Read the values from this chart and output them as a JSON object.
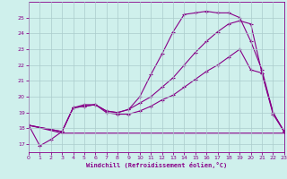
{
  "xlabel": "Windchill (Refroidissement éolien,°C)",
  "bg_color": "#cff0ec",
  "grid_color": "#aacccc",
  "line_color": "#880088",
  "line1_x": [
    0,
    1,
    2,
    3,
    4,
    5,
    6,
    7,
    8,
    9,
    10,
    11,
    12,
    13,
    14,
    15,
    16,
    17,
    18,
    19,
    20,
    21,
    22,
    23
  ],
  "line1_y": [
    18.2,
    16.9,
    17.3,
    17.8,
    19.3,
    19.4,
    19.5,
    19.1,
    19.0,
    19.2,
    20.0,
    21.4,
    22.7,
    24.1,
    25.2,
    25.3,
    25.4,
    25.3,
    25.3,
    25.0,
    23.5,
    21.7,
    19.0,
    17.8
  ],
  "line2_x": [
    0,
    3,
    4,
    5,
    6,
    7,
    8,
    9,
    10,
    11,
    12,
    13,
    14,
    15,
    16,
    17,
    18,
    19,
    20,
    21,
    22,
    23
  ],
  "line2_y": [
    18.2,
    17.8,
    19.3,
    19.5,
    19.5,
    19.1,
    19.0,
    19.2,
    19.6,
    20.0,
    20.6,
    21.2,
    22.0,
    22.8,
    23.5,
    24.1,
    24.6,
    24.8,
    24.6,
    21.5,
    19.0,
    17.8
  ],
  "line3_x": [
    0,
    3,
    4,
    5,
    6,
    7,
    8,
    9,
    10,
    11,
    12,
    13,
    14,
    15,
    16,
    17,
    18,
    19,
    20,
    21,
    22,
    23
  ],
  "line3_y": [
    18.2,
    17.8,
    19.3,
    19.4,
    19.5,
    19.0,
    18.9,
    18.9,
    19.1,
    19.4,
    19.8,
    20.1,
    20.6,
    21.1,
    21.6,
    22.0,
    22.5,
    23.0,
    21.7,
    21.5,
    18.9,
    17.8
  ],
  "line4_x": [
    0,
    3,
    23
  ],
  "line4_y": [
    18.2,
    17.7,
    17.7
  ],
  "xlim": [
    0,
    23
  ],
  "ylim": [
    16.5,
    26
  ],
  "yticks": [
    17,
    18,
    19,
    20,
    21,
    22,
    23,
    24,
    25
  ],
  "xticks": [
    0,
    1,
    2,
    3,
    4,
    5,
    6,
    7,
    8,
    9,
    10,
    11,
    12,
    13,
    14,
    15,
    16,
    17,
    18,
    19,
    20,
    21,
    22,
    23
  ]
}
